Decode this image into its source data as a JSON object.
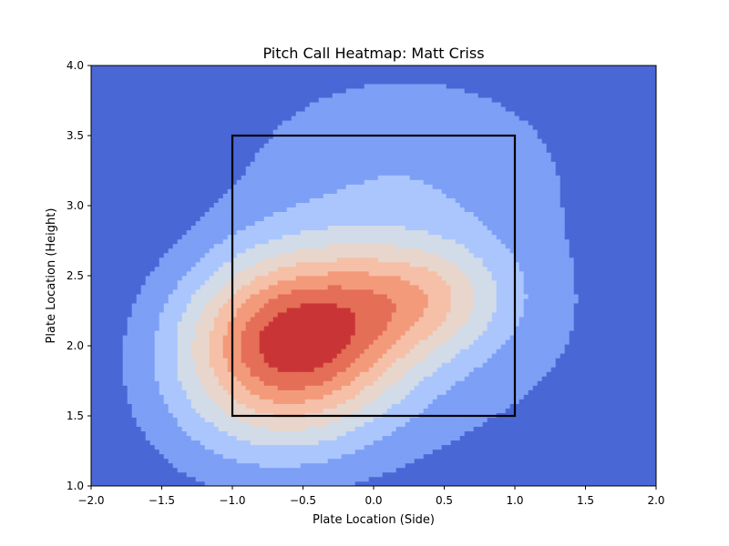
{
  "chart_data": {
    "type": "heatmap",
    "title": "Pitch Call Heatmap: Matt Criss",
    "xlabel": "Plate Location (Side)",
    "ylabel": "Plate Location (Height)",
    "xlim": [
      -2.0,
      2.0
    ],
    "ylim": [
      1.0,
      4.0
    ],
    "x_ticks": [
      {
        "value": -2.0,
        "label": "−2.0"
      },
      {
        "value": -1.5,
        "label": "−1.5"
      },
      {
        "value": -1.0,
        "label": "−1.0"
      },
      {
        "value": -0.5,
        "label": "−0.5"
      },
      {
        "value": 0.0,
        "label": "0.0"
      },
      {
        "value": 0.5,
        "label": "0.5"
      },
      {
        "value": 1.0,
        "label": "1.0"
      },
      {
        "value": 1.5,
        "label": "1.5"
      },
      {
        "value": 2.0,
        "label": "2.0"
      }
    ],
    "y_ticks": [
      {
        "value": 1.0,
        "label": "1.0"
      },
      {
        "value": 1.5,
        "label": "1.5"
      },
      {
        "value": 2.0,
        "label": "2.0"
      },
      {
        "value": 2.5,
        "label": "2.5"
      },
      {
        "value": 3.0,
        "label": "3.0"
      },
      {
        "value": 3.5,
        "label": "3.5"
      },
      {
        "value": 4.0,
        "label": "4.0"
      }
    ],
    "grid": false,
    "colormap": "coolwarm",
    "density_levels": [
      {
        "level": 0,
        "color": "#4a67d6"
      },
      {
        "level": 1,
        "color": "#7d9ff5"
      },
      {
        "level": 2,
        "color": "#aac6fd"
      },
      {
        "level": 3,
        "color": "#d2dbe8"
      },
      {
        "level": 4,
        "color": "#e8d6cc"
      },
      {
        "level": 5,
        "color": "#f5c0a7"
      },
      {
        "level": 6,
        "color": "#f39a7b"
      },
      {
        "level": 7,
        "color": "#e46e56"
      },
      {
        "level": 8,
        "color": "#c93536"
      }
    ],
    "density_sources": [
      {
        "x": -0.55,
        "y": 2.05,
        "weight": 1.0,
        "sx": 0.55,
        "sy": 0.45
      },
      {
        "x": 0.35,
        "y": 2.35,
        "weight": 0.45,
        "sx": 0.45,
        "sy": 0.3
      },
      {
        "x": 0.2,
        "y": 3.3,
        "weight": 0.22,
        "sx": 0.9,
        "sy": 0.55
      },
      {
        "x": -0.9,
        "y": 1.55,
        "weight": 0.18,
        "sx": 0.6,
        "sy": 0.5
      },
      {
        "x": 0.9,
        "y": 1.9,
        "weight": 0.12,
        "sx": 0.9,
        "sy": 0.8
      }
    ],
    "strike_zone": {
      "x_min": -1.0,
      "x_max": 1.0,
      "y_min": 1.5,
      "y_max": 3.5,
      "color": "#000000"
    }
  }
}
